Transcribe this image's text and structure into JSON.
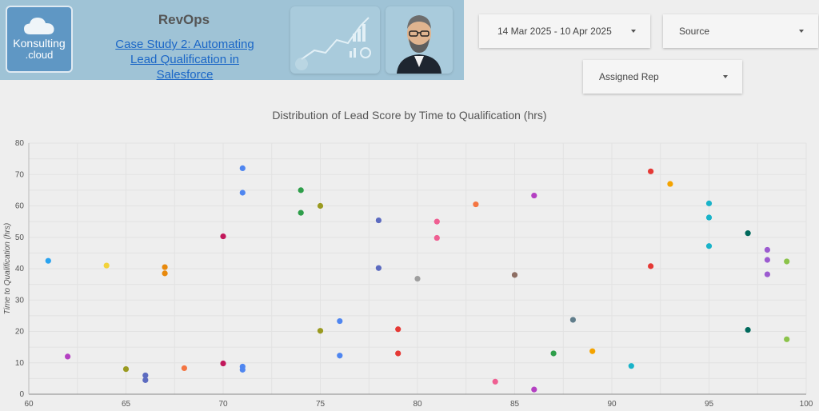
{
  "header": {
    "logo_line1": "Konsulting",
    "logo_line2": ".cloud",
    "brand": "RevOps",
    "case_study_link": "Case Study 2: Automating Lead Qualification in Salesforce"
  },
  "filters": {
    "date_range": "14 Mar 2025 - 10 Apr 2025",
    "source": "Source",
    "assigned_rep": "Assigned Rep"
  },
  "chart_data": {
    "type": "scatter",
    "title": "Distribution of Lead Score by Time to Qualification (hrs)",
    "xlabel": "",
    "ylabel": "Time to Qualification (hrs)",
    "xlim": [
      60,
      100
    ],
    "ylim": [
      0,
      80
    ],
    "xticks": [
      60,
      65,
      70,
      75,
      80,
      85,
      90,
      95,
      100
    ],
    "yticks": [
      0,
      10,
      20,
      30,
      40,
      50,
      60,
      70,
      80
    ],
    "grid": true,
    "points": [
      {
        "x": 61,
        "y": 42.5,
        "color": "#29a3f0"
      },
      {
        "x": 62,
        "y": 12,
        "color": "#b440c2"
      },
      {
        "x": 64,
        "y": 41,
        "color": "#f2d23a"
      },
      {
        "x": 65,
        "y": 8,
        "color": "#9a9a20"
      },
      {
        "x": 66,
        "y": 6,
        "color": "#5c6bc0"
      },
      {
        "x": 66,
        "y": 4.5,
        "color": "#5c6bc0"
      },
      {
        "x": 67,
        "y": 40.5,
        "color": "#e8890c"
      },
      {
        "x": 67,
        "y": 38.5,
        "color": "#e8890c"
      },
      {
        "x": 68,
        "y": 8.3,
        "color": "#f47542"
      },
      {
        "x": 70,
        "y": 50.3,
        "color": "#c2185b"
      },
      {
        "x": 70,
        "y": 9.8,
        "color": "#c2185b"
      },
      {
        "x": 71,
        "y": 72,
        "color": "#4f86f0"
      },
      {
        "x": 71,
        "y": 64.2,
        "color": "#4f86f0"
      },
      {
        "x": 71,
        "y": 8.8,
        "color": "#4f86f0"
      },
      {
        "x": 71,
        "y": 7.8,
        "color": "#4f86f0"
      },
      {
        "x": 74,
        "y": 65,
        "color": "#2e9e4a"
      },
      {
        "x": 74,
        "y": 57.8,
        "color": "#2e9e4a"
      },
      {
        "x": 75,
        "y": 60,
        "color": "#9a9a20"
      },
      {
        "x": 75,
        "y": 20.2,
        "color": "#9a9a20"
      },
      {
        "x": 76,
        "y": 23.3,
        "color": "#4f86f0"
      },
      {
        "x": 76,
        "y": 12.3,
        "color": "#4f86f0"
      },
      {
        "x": 78,
        "y": 55.4,
        "color": "#5c6bc0"
      },
      {
        "x": 78,
        "y": 40.2,
        "color": "#5c6bc0"
      },
      {
        "x": 79,
        "y": 20.7,
        "color": "#e53935"
      },
      {
        "x": 79,
        "y": 13,
        "color": "#e53935"
      },
      {
        "x": 80,
        "y": 36.8,
        "color": "#9e9e9e"
      },
      {
        "x": 81,
        "y": 55,
        "color": "#ef5f92"
      },
      {
        "x": 81,
        "y": 49.8,
        "color": "#ef5f92"
      },
      {
        "x": 83,
        "y": 60.5,
        "color": "#f47542"
      },
      {
        "x": 84,
        "y": 4,
        "color": "#ef5f92"
      },
      {
        "x": 85,
        "y": 38,
        "color": "#8d6e63"
      },
      {
        "x": 86,
        "y": 63.3,
        "color": "#b440c2"
      },
      {
        "x": 86,
        "y": 1.5,
        "color": "#b440c2"
      },
      {
        "x": 87,
        "y": 13,
        "color": "#2e9e4a"
      },
      {
        "x": 88,
        "y": 23.7,
        "color": "#607d8b"
      },
      {
        "x": 89,
        "y": 13.7,
        "color": "#f4a300"
      },
      {
        "x": 91,
        "y": 9,
        "color": "#19b3c9"
      },
      {
        "x": 92,
        "y": 71,
        "color": "#e53935"
      },
      {
        "x": 92,
        "y": 40.8,
        "color": "#e53935"
      },
      {
        "x": 93,
        "y": 67,
        "color": "#f4a300"
      },
      {
        "x": 95,
        "y": 60.8,
        "color": "#19b3c9"
      },
      {
        "x": 95,
        "y": 56.3,
        "color": "#19b3c9"
      },
      {
        "x": 95,
        "y": 47.2,
        "color": "#19b3c9"
      },
      {
        "x": 97,
        "y": 51.3,
        "color": "#00695c"
      },
      {
        "x": 97,
        "y": 20.5,
        "color": "#00695c"
      },
      {
        "x": 98,
        "y": 46,
        "color": "#9c5bd0"
      },
      {
        "x": 98,
        "y": 42.8,
        "color": "#9c5bd0"
      },
      {
        "x": 98,
        "y": 38.2,
        "color": "#9c5bd0"
      },
      {
        "x": 99,
        "y": 42.3,
        "color": "#8bc34a"
      },
      {
        "x": 99,
        "y": 17.5,
        "color": "#8bc34a"
      }
    ]
  }
}
